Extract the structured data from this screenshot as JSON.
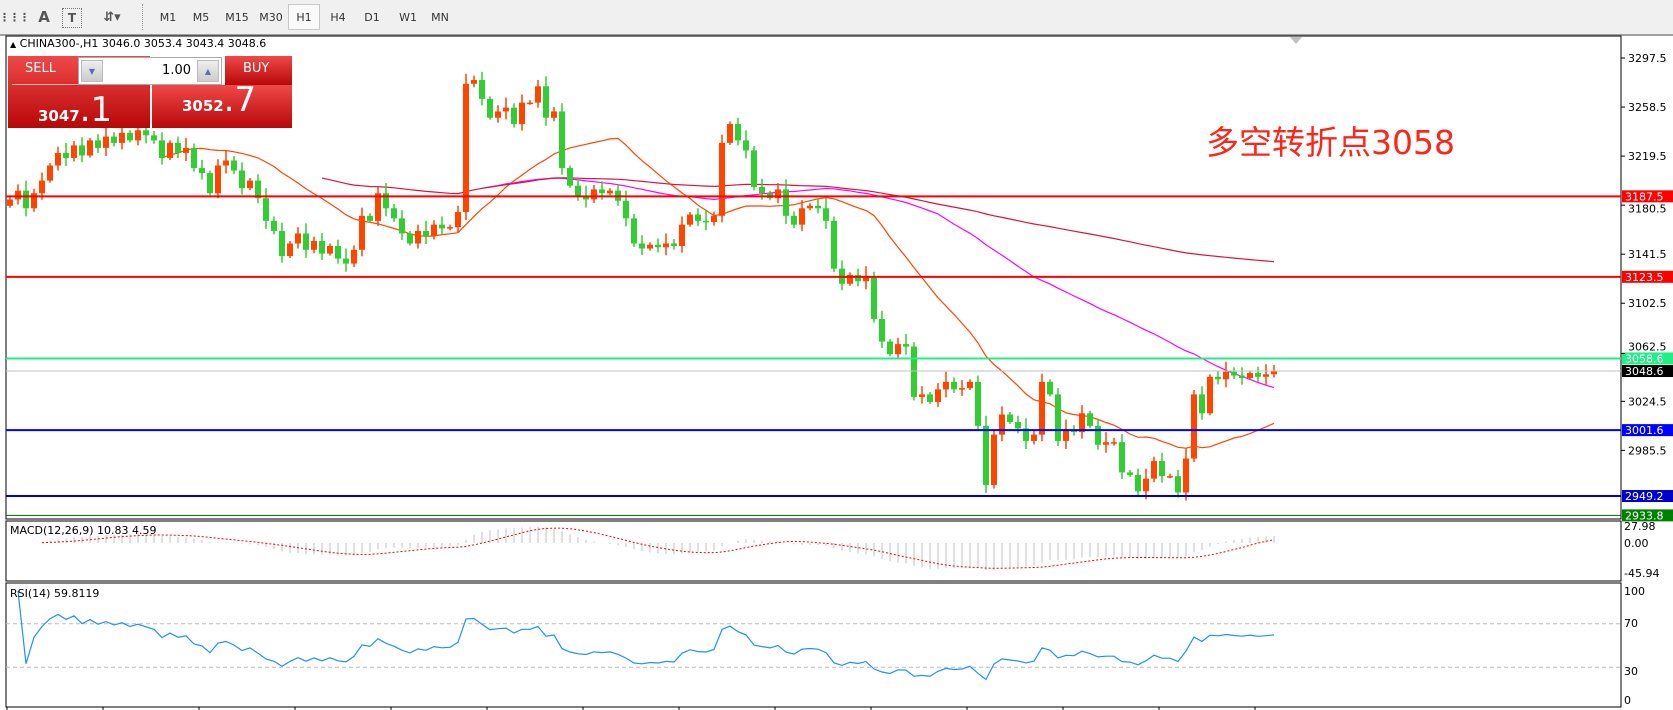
{
  "toolbar": {
    "icons": [
      "grid-icon",
      "text-A-icon",
      "text-label-T-icon",
      "arrows-icon"
    ],
    "timeframes": [
      "M1",
      "M5",
      "M15",
      "M30",
      "H1",
      "H4",
      "D1",
      "W1",
      "MN"
    ],
    "selected_timeframe": "H1"
  },
  "header": {
    "symbol_line": "CHINA300-,H1  3046.0 3053.4 3043.4 3048.6",
    "open": 3046.0,
    "high": 3053.4,
    "low": 3043.4,
    "close": 3048.6
  },
  "trade_panel": {
    "sell_label": "SELL",
    "buy_label": "BUY",
    "volume": "1.00",
    "sell_price_main": "3047",
    "sell_price_frac": ".1",
    "buy_price_main": "3052",
    "buy_price_frac": ".7"
  },
  "annotation": "多空转折点3058",
  "colors": {
    "bull_candle": "#ff4500",
    "bear_candle": "#32cd32",
    "ma_fast": "#ff4500",
    "ma_mid": "#ff00ff",
    "ma_slow": "#dc143c",
    "rsi_line": "#1e90ff",
    "macd_hist": "#c0c0c0",
    "macd_signal": "#ff0000"
  },
  "price_axis": [
    "3297.5",
    "3258.5",
    "3219.5",
    "3180.5",
    "3141.5",
    "3102.5",
    "3062.5",
    "3024.5",
    "2985.5"
  ],
  "levels": [
    {
      "price": "3187.5",
      "color": "#ff0000",
      "text_color": "#ffffff"
    },
    {
      "price": "3123.5",
      "color": "#ff0000",
      "text_color": "#ffffff"
    },
    {
      "price": "3058.6",
      "color": "#22ee88",
      "text_color": "#ffffff"
    },
    {
      "price": "3048.6",
      "color": "#c0c0c0",
      "label_bg": "#000000",
      "text_color": "#ffffff"
    },
    {
      "price": "3001.6",
      "color": "#0000ff",
      "text_color": "#ffffff"
    },
    {
      "price": "2949.2",
      "color": "#0000cc",
      "text_color": "#ffffff"
    },
    {
      "price": "2933.8",
      "color": "#006400",
      "label_bg": "#008000",
      "text_color": "#ffffff"
    }
  ],
  "macd": {
    "title": "MACD(12,26,9) 10.83 4.59",
    "axis": [
      "27.98",
      "0.00",
      "-45.94"
    ]
  },
  "rsi": {
    "title": "RSI(14) 59.8119",
    "axis": [
      "100",
      "70",
      "30",
      "0"
    ],
    "levels": [
      70,
      30
    ]
  },
  "chart_data": {
    "type": "candlestick",
    "symbol": "CHINA300-",
    "timeframe": "H1",
    "y_range": [
      2933.8,
      3297.5
    ],
    "moving_average_periods": [
      20,
      60,
      200
    ],
    "closes": [
      3185,
      3192,
      3178,
      3190,
      3200,
      3212,
      3222,
      3218,
      3228,
      3220,
      3232,
      3226,
      3235,
      3230,
      3238,
      3232,
      3240,
      3236,
      3232,
      3218,
      3230,
      3222,
      3226,
      3210,
      3206,
      3190,
      3212,
      3216,
      3208,
      3194,
      3200,
      3186,
      3168,
      3160,
      3140,
      3150,
      3158,
      3145,
      3152,
      3142,
      3148,
      3138,
      3134,
      3145,
      3172,
      3168,
      3190,
      3178,
      3170,
      3158,
      3150,
      3160,
      3156,
      3165,
      3162,
      3163,
      3175,
      3277,
      3280,
      3265,
      3250,
      3255,
      3258,
      3245,
      3262,
      3262,
      3275,
      3250,
      3255,
      3210,
      3196,
      3188,
      3185,
      3193,
      3190,
      3192,
      3184,
      3170,
      3150,
      3146,
      3149,
      3147,
      3150,
      3148,
      3165,
      3173,
      3168,
      3167,
      3172,
      3230,
      3245,
      3232,
      3224,
      3195,
      3190,
      3186,
      3193,
      3172,
      3165,
      3178,
      3180,
      3178,
      3168,
      3130,
      3118,
      3125,
      3120,
      3124,
      3090,
      3072,
      3062,
      3070,
      3068,
      3028,
      3030,
      3024,
      3034,
      3040,
      3034,
      3035,
      3040,
      3005,
      2958,
      2998,
      3014,
      3008,
      3003,
      2993,
      2998,
      3040,
      3030,
      2993,
      3002,
      3000,
      3015,
      3005,
      2990,
      2992,
      2992,
      2968,
      2966,
      2953,
      2963,
      2977,
      2965,
      2965,
      2952,
      2979,
      3030,
      3015,
      3044,
      3042,
      3048,
      3045,
      3043,
      3047,
      3044,
      3046,
      3048.6
    ]
  }
}
